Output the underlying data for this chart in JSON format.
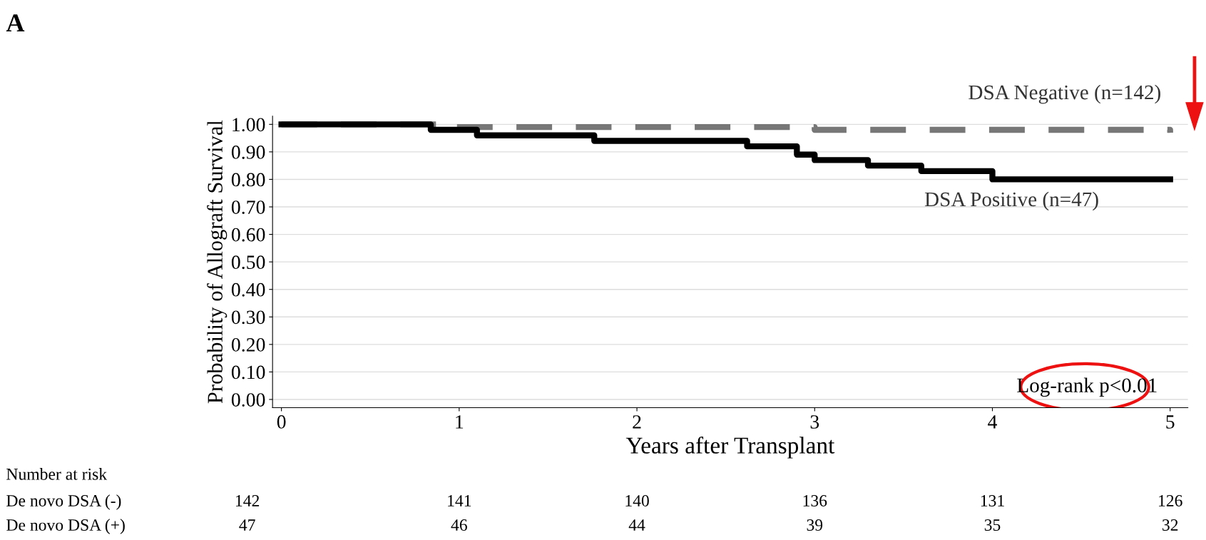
{
  "chart_data": {
    "type": "step",
    "xlabel": "Years after Transplant",
    "ylabel": "Probability of Allograft Survival",
    "xlim": [
      -0.05,
      5.1
    ],
    "ylim": [
      -0.03,
      1.03
    ],
    "xticks": [
      0,
      1,
      2,
      3,
      4,
      5
    ],
    "yticks": [
      {
        "value": 0,
        "label": "0.00"
      },
      {
        "value": 0.1,
        "label": "0.10"
      },
      {
        "value": 0.2,
        "label": "0.20"
      },
      {
        "value": 0.3,
        "label": "0.30"
      },
      {
        "value": 0.4,
        "label": "0.40"
      },
      {
        "value": 0.5,
        "label": "0.50"
      },
      {
        "value": 0.6,
        "label": "0.60"
      },
      {
        "value": 0.7,
        "label": "0.70"
      },
      {
        "value": 0.8,
        "label": "0.80"
      },
      {
        "value": 0.9,
        "label": "0.90"
      },
      {
        "value": 1,
        "label": "1.00"
      }
    ],
    "grid": "y",
    "series": [
      {
        "name": "DSA Negative (n=142)",
        "color": "#777777",
        "line_style": "dashed",
        "x": [
          0,
          0.95,
          3.0,
          4.0,
          5.0
        ],
        "values": [
          1.0,
          0.99,
          0.98,
          0.98,
          0.97
        ]
      },
      {
        "name": "DSA Positive (n=47)",
        "color": "#000000",
        "line_style": "solid",
        "x": [
          0,
          0.84,
          1.1,
          1.76,
          2.62,
          2.9,
          3.0,
          3.3,
          3.6,
          4.0,
          5.0
        ],
        "values": [
          1.0,
          0.98,
          0.96,
          0.94,
          0.92,
          0.89,
          0.87,
          0.85,
          0.83,
          0.8,
          0.8
        ]
      }
    ],
    "annotations": [
      "A",
      "Log-rank p<0.01",
      "Number at risk",
      "De novo DSA (-)",
      "142",
      "141",
      "140",
      "136",
      "131",
      "126",
      "De novo DSA (+)",
      "47",
      "46",
      "44",
      "39",
      "35",
      "32"
    ]
  }
}
